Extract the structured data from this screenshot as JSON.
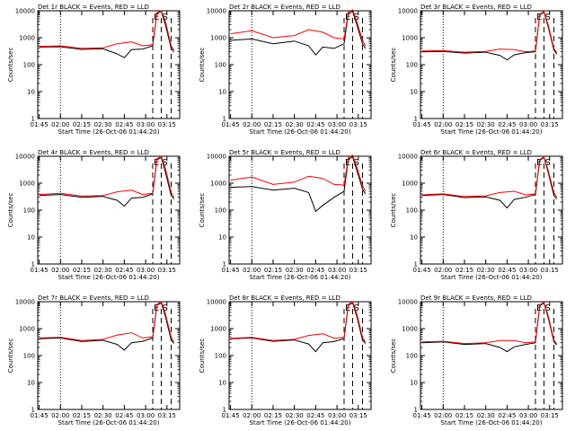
{
  "colors": {
    "events": "#000000",
    "lld": "#ff0000",
    "background": "#ffffff"
  },
  "chart_data": {
    "type": "line",
    "grid": false,
    "legend": "none",
    "x_ticks": [
      "01:45",
      "02:00",
      "02:15",
      "02:30",
      "02:45",
      "03:00",
      "03:15"
    ],
    "y_ticks": [
      "1",
      "10",
      "100",
      "1000",
      "10000"
    ],
    "y_scale": "log",
    "ylim": [
      1,
      10000
    ],
    "ylabel": "Counts/sec",
    "xlabel": "Start Time (26-Oct-06 01:44:20)",
    "dotted_times": [
      "02:00"
    ],
    "dashed_times": [
      "03:05",
      "03:11",
      "03:18"
    ],
    "flare_labels": [
      "E",
      "S"
    ],
    "panels": [
      {
        "title": "Det 1r BLACK = Events, RED = LLD",
        "xlabel": "Start Time (26-Oct-06 01:44:20)",
        "series": [
          {
            "color": "black",
            "x": [
              "01:45",
              "02:00",
              "02:15",
              "02:30",
              "02:40",
              "02:45",
              "02:50",
              "02:58",
              "03:05",
              "03:08",
              "03:11",
              "03:14",
              "03:18",
              "03:20"
            ],
            "y": [
              450,
              460,
              370,
              390,
              250,
              180,
              360,
              380,
              500,
              8000,
              9500,
              3000,
              400,
              300
            ]
          },
          {
            "color": "red",
            "x": [
              "01:45",
              "02:00",
              "02:15",
              "02:30",
              "02:40",
              "02:50",
              "02:58",
              "03:05",
              "03:08",
              "03:11",
              "03:14",
              "03:18",
              "03:20"
            ],
            "y": [
              480,
              500,
              400,
              420,
              600,
              700,
              500,
              550,
              8500,
              10000,
              4000,
              500,
              350
            ]
          }
        ]
      },
      {
        "title": "Det 2r BLACK = Events, RED = LLD",
        "xlabel": "Start Time (26-Oct-06 01:44:20)",
        "series": [
          {
            "color": "black",
            "x": [
              "01:45",
              "02:00",
              "02:15",
              "02:30",
              "02:40",
              "02:45",
              "02:50",
              "02:58",
              "03:05",
              "03:08",
              "03:11",
              "03:14",
              "03:18",
              "03:20"
            ],
            "y": [
              800,
              900,
              600,
              750,
              500,
              230,
              450,
              400,
              600,
              8000,
              9500,
              3000,
              600,
              400
            ]
          },
          {
            "color": "red",
            "x": [
              "01:45",
              "02:00",
              "02:15",
              "02:30",
              "02:40",
              "02:50",
              "02:58",
              "03:05",
              "03:08",
              "03:11",
              "03:14",
              "03:18",
              "03:20"
            ],
            "y": [
              1400,
              1800,
              1000,
              1200,
              2000,
              1600,
              1000,
              900,
              9000,
              11000,
              4000,
              800,
              500
            ]
          }
        ]
      },
      {
        "title": "Det 3r BLACK = Events, RED = LLD",
        "xlabel": "Start Time (26-Oct-06 01:44:20)",
        "series": [
          {
            "color": "black",
            "x": [
              "01:45",
              "02:00",
              "02:15",
              "02:30",
              "02:40",
              "02:45",
              "02:50",
              "02:58",
              "03:05",
              "03:08",
              "03:11",
              "03:14",
              "03:18",
              "03:20"
            ],
            "y": [
              300,
              310,
              270,
              290,
              220,
              150,
              230,
              280,
              300,
              7000,
              9000,
              2500,
              350,
              250
            ]
          },
          {
            "color": "red",
            "x": [
              "01:45",
              "02:00",
              "02:15",
              "02:30",
              "02:40",
              "02:50",
              "02:58",
              "03:05",
              "03:08",
              "03:11",
              "03:14",
              "03:18",
              "03:20"
            ],
            "y": [
              320,
              330,
              290,
              310,
              380,
              360,
              300,
              320,
              7500,
              9500,
              3000,
              400,
              280
            ]
          }
        ]
      },
      {
        "title": "Det 4r BLACK = Events, RED = LLD",
        "xlabel": "Start Time (26-Oct-06 01:44:20)",
        "series": [
          {
            "color": "black",
            "x": [
              "01:45",
              "02:00",
              "02:15",
              "02:30",
              "02:40",
              "02:45",
              "02:50",
              "02:58",
              "03:05",
              "03:08",
              "03:11",
              "03:14",
              "03:18",
              "03:20"
            ],
            "y": [
              350,
              380,
              300,
              320,
              230,
              140,
              280,
              300,
              400,
              7500,
              9000,
              2500,
              350,
              260
            ]
          },
          {
            "color": "red",
            "x": [
              "01:45",
              "02:00",
              "02:15",
              "02:30",
              "02:40",
              "02:50",
              "02:58",
              "03:05",
              "03:08",
              "03:11",
              "03:14",
              "03:18",
              "03:20"
            ],
            "y": [
              380,
              420,
              330,
              350,
              480,
              550,
              380,
              420,
              8000,
              10000,
              3500,
              450,
              300
            ]
          }
        ]
      },
      {
        "title": "Det 5r BLACK = Events, RED = LLD",
        "xlabel": "Start Time (26-Oct-06 01:44:20)",
        "series": [
          {
            "color": "black",
            "x": [
              "01:45",
              "02:00",
              "02:15",
              "02:30",
              "02:40",
              "02:45",
              "02:50",
              "02:58",
              "03:05",
              "03:08",
              "03:11",
              "03:14",
              "03:18",
              "03:20"
            ],
            "y": [
              700,
              750,
              550,
              650,
              450,
              90,
              150,
              300,
              500,
              8000,
              9500,
              3000,
              600,
              400
            ]
          },
          {
            "color": "red",
            "x": [
              "01:45",
              "02:00",
              "02:15",
              "02:30",
              "02:40",
              "02:50",
              "02:58",
              "03:05",
              "03:08",
              "03:11",
              "03:14",
              "03:18",
              "03:20"
            ],
            "y": [
              1300,
              1700,
              900,
              1100,
              1800,
              1500,
              900,
              850,
              9000,
              11000,
              4000,
              800,
              500
            ]
          }
        ]
      },
      {
        "title": "Det 6r BLACK = Events, RED = LLD",
        "xlabel": "Start Time (26-Oct-06 01:44:20)",
        "series": [
          {
            "color": "black",
            "x": [
              "01:45",
              "02:00",
              "02:15",
              "02:30",
              "02:40",
              "02:45",
              "02:50",
              "02:58",
              "03:05",
              "03:08",
              "03:11",
              "03:14",
              "03:18",
              "03:20"
            ],
            "y": [
              350,
              380,
              290,
              310,
              230,
              120,
              250,
              300,
              380,
              7000,
              9000,
              2500,
              350,
              260
            ]
          },
          {
            "color": "red",
            "x": [
              "01:45",
              "02:00",
              "02:15",
              "02:30",
              "02:40",
              "02:50",
              "02:58",
              "03:05",
              "03:08",
              "03:11",
              "03:14",
              "03:18",
              "03:20"
            ],
            "y": [
              370,
              400,
              320,
              340,
              450,
              500,
              370,
              400,
              7500,
              9500,
              3000,
              450,
              300
            ]
          }
        ]
      },
      {
        "title": "Det 7r BLACK = Events, RED = LLD",
        "xlabel": "Start Time (26-Oct-06 01:44:20)",
        "series": [
          {
            "color": "black",
            "x": [
              "01:45",
              "02:00",
              "02:15",
              "02:30",
              "02:40",
              "02:45",
              "02:50",
              "02:58",
              "03:05",
              "03:08",
              "03:11",
              "03:14",
              "03:18",
              "03:20"
            ],
            "y": [
              420,
              450,
              330,
              370,
              260,
              160,
              300,
              340,
              450,
              7500,
              9000,
              2800,
              380,
              280
            ]
          },
          {
            "color": "red",
            "x": [
              "01:45",
              "02:00",
              "02:15",
              "02:30",
              "02:40",
              "02:50",
              "02:58",
              "03:05",
              "03:08",
              "03:11",
              "03:14",
              "03:18",
              "03:20"
            ],
            "y": [
              450,
              480,
              360,
              400,
              580,
              700,
              450,
              500,
              8000,
              10000,
              3500,
              480,
              320
            ]
          }
        ]
      },
      {
        "title": "Det 8r BLACK = Events, RED = LLD",
        "xlabel": "Start Time (26-Oct-06 01:44:20)",
        "series": [
          {
            "color": "black",
            "x": [
              "01:45",
              "02:00",
              "02:15",
              "02:30",
              "02:40",
              "02:45",
              "02:50",
              "02:58",
              "03:05",
              "03:08",
              "03:11",
              "03:14",
              "03:18",
              "03:20"
            ],
            "y": [
              420,
              450,
              340,
              380,
              270,
              140,
              300,
              330,
              430,
              7500,
              9000,
              2800,
              380,
              280
            ]
          },
          {
            "color": "red",
            "x": [
              "01:45",
              "02:00",
              "02:15",
              "02:30",
              "02:40",
              "02:50",
              "02:58",
              "03:05",
              "03:08",
              "03:11",
              "03:14",
              "03:18",
              "03:20"
            ],
            "y": [
              440,
              470,
              360,
              400,
              560,
              650,
              440,
              480,
              8000,
              10000,
              3500,
              470,
              320
            ]
          }
        ]
      },
      {
        "title": "Det 9r BLACK = Events, RED = LLD",
        "xlabel": "Start Time (26-Oct-06 01:44:20)",
        "series": [
          {
            "color": "black",
            "x": [
              "01:45",
              "02:00",
              "02:15",
              "02:30",
              "02:40",
              "02:45",
              "02:50",
              "02:58",
              "03:05",
              "03:08",
              "03:11",
              "03:14",
              "03:18",
              "03:20"
            ],
            "y": [
              300,
              320,
              260,
              280,
              200,
              140,
              210,
              260,
              300,
              7000,
              9000,
              2500,
              330,
              250
            ]
          },
          {
            "color": "red",
            "x": [
              "01:45",
              "02:00",
              "02:15",
              "02:30",
              "02:40",
              "02:50",
              "02:58",
              "03:05",
              "03:08",
              "03:11",
              "03:14",
              "03:18",
              "03:20"
            ],
            "y": [
              320,
              340,
              280,
              300,
              360,
              360,
              300,
              320,
              7500,
              9500,
              3000,
              380,
              270
            ]
          }
        ]
      }
    ]
  }
}
